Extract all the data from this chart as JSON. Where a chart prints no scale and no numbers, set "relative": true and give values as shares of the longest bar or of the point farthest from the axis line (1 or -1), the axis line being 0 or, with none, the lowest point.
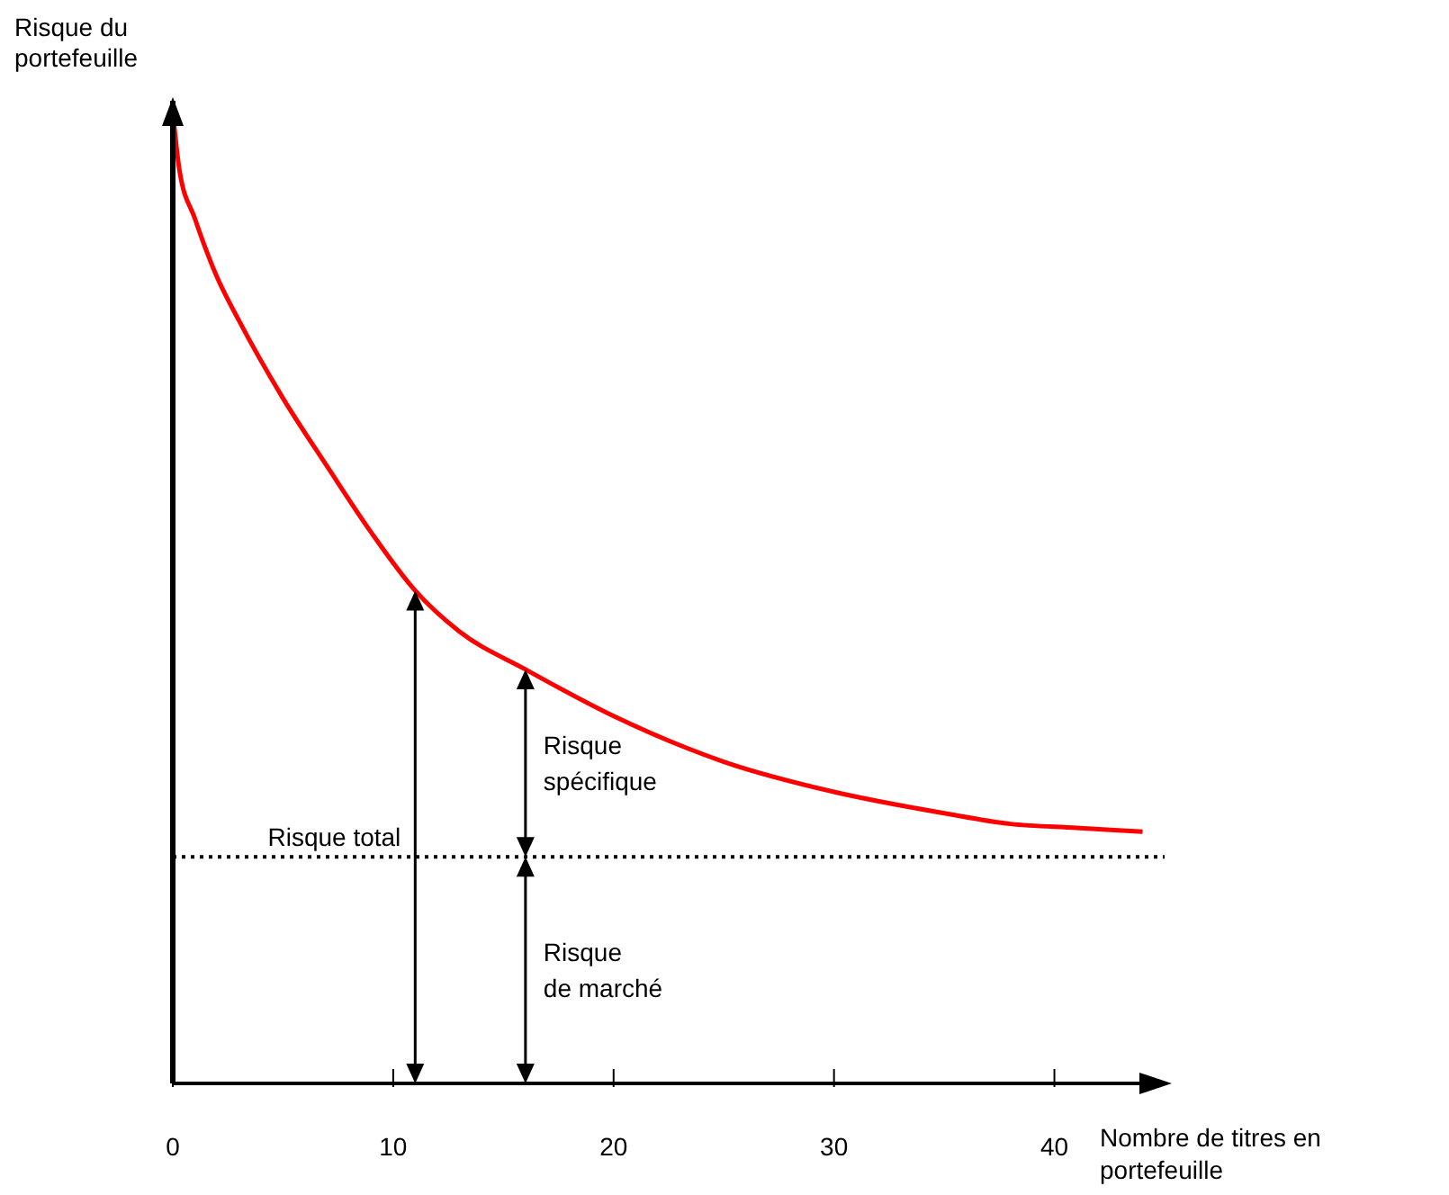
{
  "chart_data": {
    "type": "line",
    "relative": true,
    "xlabel": "Nombre de titres en portefeuille",
    "ylabel": "Risque du portefeuille",
    "x": [
      0,
      0.3,
      1,
      2,
      3,
      5,
      7,
      9,
      11,
      13,
      16,
      20,
      25,
      30,
      35,
      38,
      41,
      44
    ],
    "series": [
      {
        "color": "#ff0000",
        "values": [
          1,
          0.94,
          0.89,
          0.83,
          0.785,
          0.705,
          0.635,
          0.567,
          0.507,
          0.465,
          0.426,
          0.378,
          0.331,
          0.3,
          0.278,
          0.267,
          0.263,
          0.259
        ]
      }
    ],
    "xlim": [
      0,
      45
    ],
    "xticks": [
      0,
      10,
      20,
      30,
      40
    ],
    "ref_lines": [
      {
        "axis": "y",
        "value": 0.233,
        "line_style": "dotted",
        "color": "#000000"
      }
    ],
    "annotations": [
      "Risque total",
      "Risque spécifique",
      "Risque de marché"
    ],
    "grid": false,
    "legend": false,
    "marker": "none",
    "line_style": "solid"
  }
}
